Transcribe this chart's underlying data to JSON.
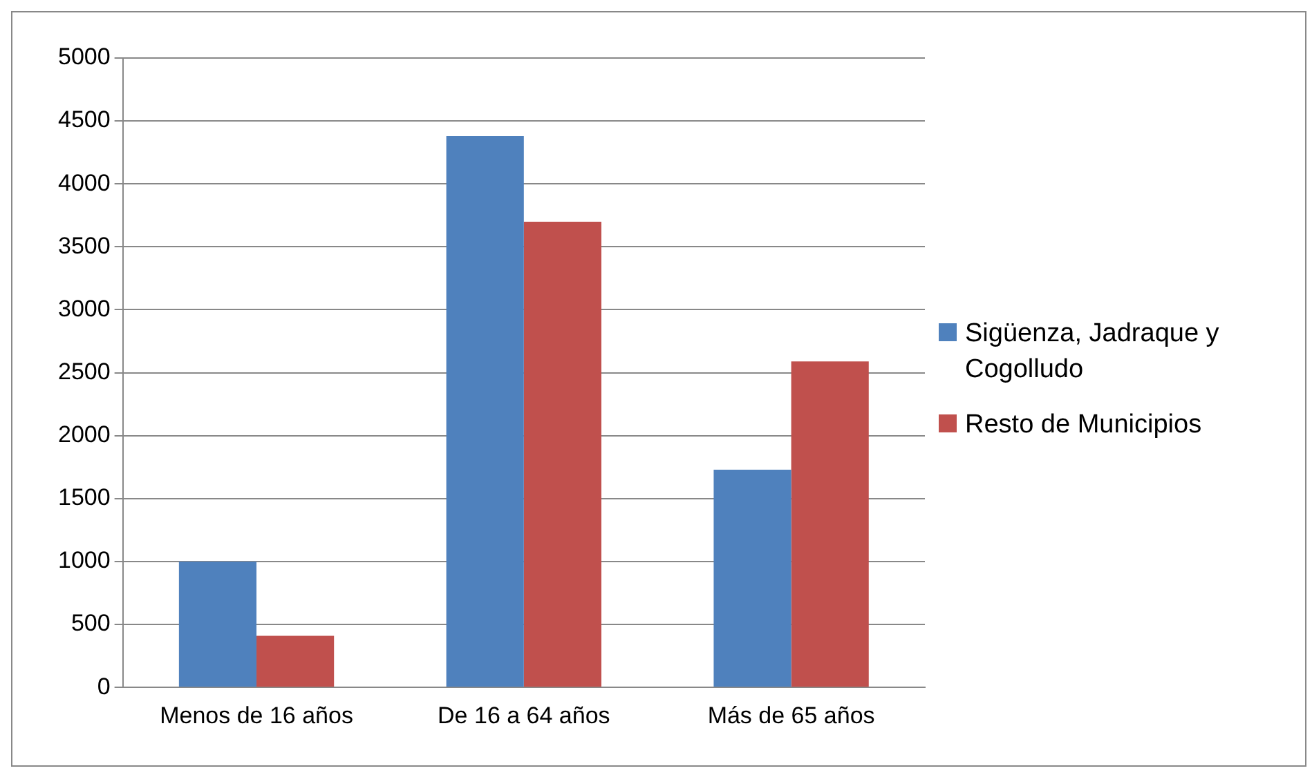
{
  "chart_data": {
    "type": "bar",
    "categories": [
      "Menos de 16 años",
      "De 16 a 64 años",
      "Más de 65 años"
    ],
    "series": [
      {
        "name": "Sigüenza, Jadraque y Cogolludo",
        "color": "#4f81bd",
        "values": [
          1000,
          4380,
          1730
        ]
      },
      {
        "name": "Resto de Municipios",
        "color": "#c0504d",
        "values": [
          410,
          3700,
          2590
        ]
      }
    ],
    "ylim": [
      0,
      5000
    ],
    "yticks": [
      0,
      500,
      1000,
      1500,
      2000,
      2500,
      3000,
      3500,
      4000,
      4500,
      5000
    ],
    "grid": "y",
    "legend": "right"
  }
}
